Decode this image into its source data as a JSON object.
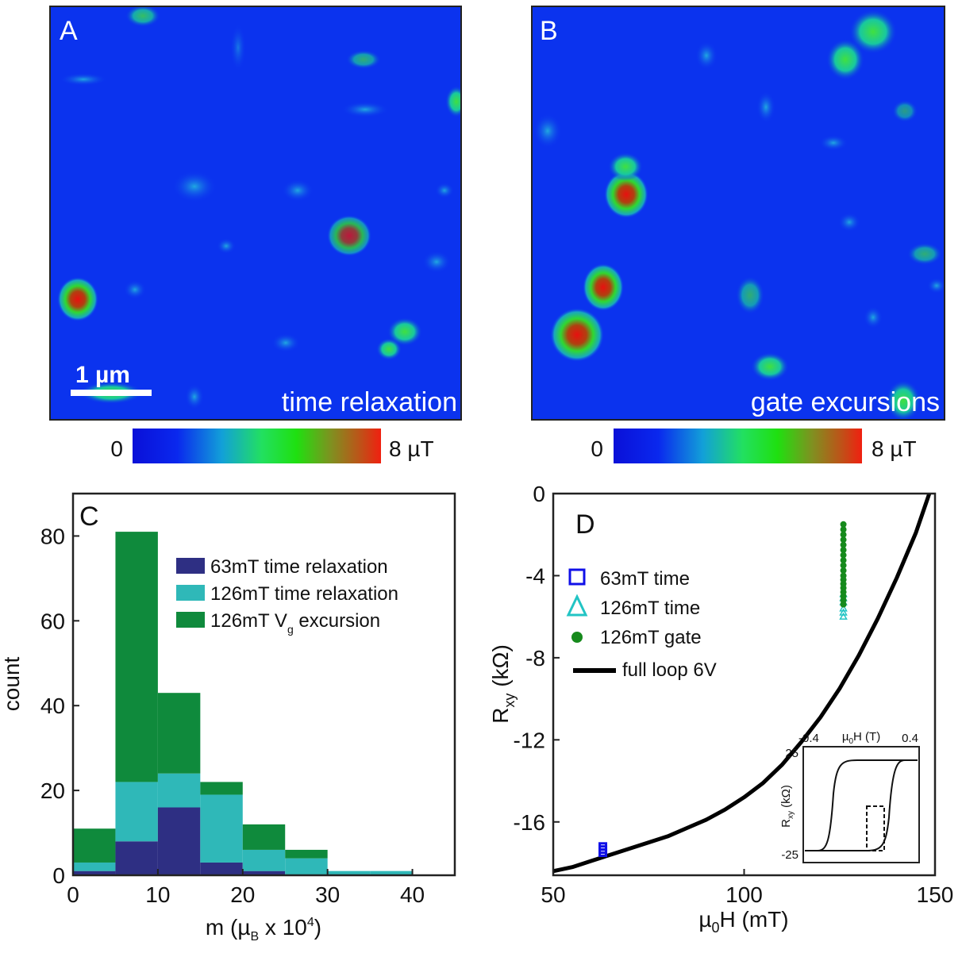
{
  "panels": {
    "A": {
      "letter": "A",
      "caption": "time relaxation",
      "scalebar": "1 µm",
      "colorbar_min": "0",
      "colorbar_max": "8 µT"
    },
    "B": {
      "letter": "B",
      "caption": "gate excursions",
      "colorbar_min": "0",
      "colorbar_max": "8 µT"
    },
    "C": {
      "letter": "C"
    },
    "D": {
      "letter": "D"
    }
  },
  "colors": {
    "navy": "#2e2f83",
    "teal": "#2fb8b8",
    "green": "#0f8a3c",
    "blue": "#1010e8",
    "cyan": "#22c4c4",
    "dot": "#168a1c",
    "map_bg": "#0b33ee"
  },
  "chart_data": [
    {
      "type": "bar",
      "panel": "C",
      "stacked": true,
      "bin_edges": [
        0,
        5,
        10,
        15,
        20,
        25,
        30,
        35,
        40
      ],
      "xlabel_main": "m (µ",
      "xlabel_sub": "B",
      "xlabel_tail": " x 10",
      "xlabel_sup": "4",
      "xlabel_end": ")",
      "ylabel": "count",
      "xlim": [
        0,
        45
      ],
      "ylim": [
        0,
        90
      ],
      "xticks": [
        "0",
        "10",
        "20",
        "30",
        "40"
      ],
      "yticks": [
        "0",
        "20",
        "40",
        "60",
        "80"
      ],
      "series": [
        {
          "name": "63mT time relaxation",
          "values": [
            1,
            8,
            16,
            3,
            1,
            0,
            0,
            0
          ]
        },
        {
          "name": "126mT time relaxation",
          "values": [
            2,
            14,
            8,
            16,
            5,
            4,
            1,
            1
          ]
        },
        {
          "name": "126mT V",
          "name_sub": "g",
          "name_tail": " excursion",
          "values": [
            8,
            59,
            19,
            3,
            6,
            2,
            0,
            0
          ]
        }
      ]
    },
    {
      "type": "scatter",
      "panel": "D",
      "xlabel_pre": "µ",
      "xlabel_sub": "0",
      "xlabel_post": "H (mT)",
      "ylabel_pre": "R",
      "ylabel_sub": "xy",
      "ylabel_post": " (kΩ)",
      "xlim": [
        50,
        150
      ],
      "ylim": [
        -18.6,
        0
      ],
      "xticks": [
        "50",
        "100",
        "150"
      ],
      "yticks": [
        "0",
        "-4",
        "-8",
        "-12",
        "-16"
      ],
      "curve_name": "full loop 6V",
      "curve": {
        "x": [
          50,
          55,
          60,
          65,
          70,
          75,
          80,
          85,
          90,
          95,
          100,
          105,
          110,
          115,
          120,
          125,
          130,
          135,
          140,
          145,
          148.5
        ],
        "y": [
          -18.4,
          -18.2,
          -17.9,
          -17.6,
          -17.3,
          -17.0,
          -16.7,
          -16.3,
          -15.9,
          -15.4,
          -14.8,
          -14.1,
          -13.2,
          -12.1,
          -10.9,
          -9.5,
          -7.9,
          -6.1,
          -4.1,
          -1.9,
          0
        ]
      },
      "series": [
        {
          "name": "63mT time",
          "marker": "square",
          "x": [
            63,
            63,
            63
          ],
          "y": [
            -17.2,
            -17.35,
            -17.5
          ]
        },
        {
          "name": "126mT time",
          "marker": "triangle",
          "x": [
            126,
            126,
            126,
            126,
            126,
            126
          ],
          "y": [
            -4.9,
            -5.1,
            -5.3,
            -5.6,
            -5.8,
            -6.0
          ]
        },
        {
          "name": "126mT gate",
          "marker": "circle",
          "x": [
            126,
            126,
            126,
            126,
            126,
            126,
            126,
            126,
            126,
            126,
            126,
            126,
            126,
            126,
            126,
            126,
            126,
            126
          ],
          "y": [
            -1.5,
            -1.75,
            -2.0,
            -2.25,
            -2.5,
            -2.75,
            -3.0,
            -3.25,
            -3.5,
            -3.75,
            -4.0,
            -4.2,
            -4.4,
            -4.6,
            -4.8,
            -5.0,
            -5.2,
            -5.4
          ]
        }
      ],
      "inset": {
        "xlabel_pre": "µ",
        "xlabel_sub": "0",
        "xlabel_post": "H (T)",
        "ylabel_pre": "R",
        "ylabel_sub": "xy",
        "ylabel_post": " (kΩ)",
        "xlim": [
          -0.4,
          0.4
        ],
        "ylim": [
          -25,
          25
        ],
        "xticks": [
          "-0.4",
          "0.4"
        ],
        "yticks": [
          "25",
          "-25"
        ]
      }
    }
  ]
}
